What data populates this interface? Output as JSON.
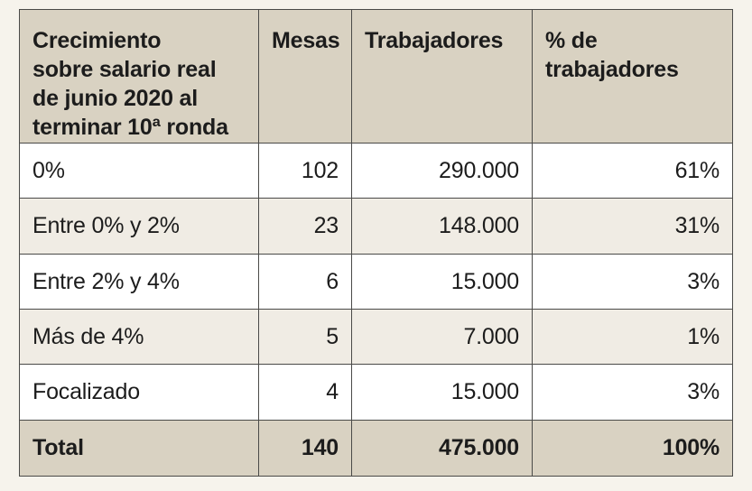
{
  "table": {
    "headers": [
      "Crecimiento\nsobre salario real\nde junio 2020 al\nterminar 10ª ronda",
      "Mesas",
      "Trabajadores",
      "% de\ntrabajadores"
    ],
    "rows": [
      [
        "0%",
        "102",
        "290.000",
        "61%"
      ],
      [
        "Entre 0% y 2%",
        "23",
        "148.000",
        "31%"
      ],
      [
        "Entre 2% y 4%",
        "6",
        "15.000",
        "3%"
      ],
      [
        "Más de 4%",
        "5",
        "7.000",
        "1%"
      ],
      [
        "Focalizado",
        "4",
        "15.000",
        "3%"
      ]
    ],
    "total": [
      "Total",
      "140",
      "475.000",
      "100%"
    ]
  },
  "colors": {
    "header_bg": "#d9d2c2",
    "row_white": "#ffffff",
    "row_shaded": "#f0ece4",
    "border": "#4a4a48"
  }
}
